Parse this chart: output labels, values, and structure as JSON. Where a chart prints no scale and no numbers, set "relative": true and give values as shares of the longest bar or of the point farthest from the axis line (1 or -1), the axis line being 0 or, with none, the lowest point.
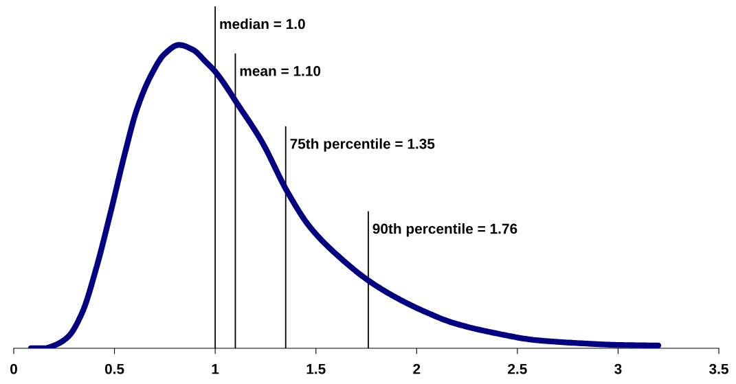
{
  "chart_data": {
    "type": "line",
    "relative": true,
    "x": [
      0.085,
      0.15,
      0.2,
      0.27,
      0.34,
      0.41,
      0.48,
      0.55,
      0.61,
      0.68,
      0.75,
      0.82,
      0.89,
      0.955,
      1.0,
      1.12,
      1.23,
      1.36,
      1.47,
      1.64,
      1.77,
      1.91,
      2.05,
      2.18,
      2.39,
      2.59,
      2.83,
      3.0,
      3.2
    ],
    "series": [
      {
        "color": "#000080",
        "values": [
          0,
          0,
          0.009,
          0.038,
          0.118,
          0.265,
          0.446,
          0.638,
          0.785,
          0.898,
          0.971,
          1.0,
          0.984,
          0.943,
          0.912,
          0.796,
          0.683,
          0.514,
          0.4,
          0.287,
          0.219,
          0.163,
          0.118,
          0.084,
          0.05,
          0.027,
          0.016,
          0.011,
          0.009
        ]
      }
    ],
    "xlim": [
      0,
      3.5
    ],
    "xticks": [
      0,
      0.5,
      1,
      1.5,
      2,
      2.5,
      3,
      3.5
    ],
    "ref_lines": [
      {
        "axis": "x",
        "value": 1.0,
        "label": "median = 1.0",
        "color": "#000000"
      },
      {
        "axis": "x",
        "value": 1.1,
        "label": "mean = 1.10",
        "color": "#000000"
      },
      {
        "axis": "x",
        "value": 1.35,
        "label": "75th percentile = 1.35",
        "color": "#000000"
      },
      {
        "axis": "x",
        "value": 1.76,
        "label": "90th percentile = 1.76",
        "color": "#000000"
      }
    ],
    "grid": false,
    "marker": "none",
    "line_style": "solid"
  }
}
